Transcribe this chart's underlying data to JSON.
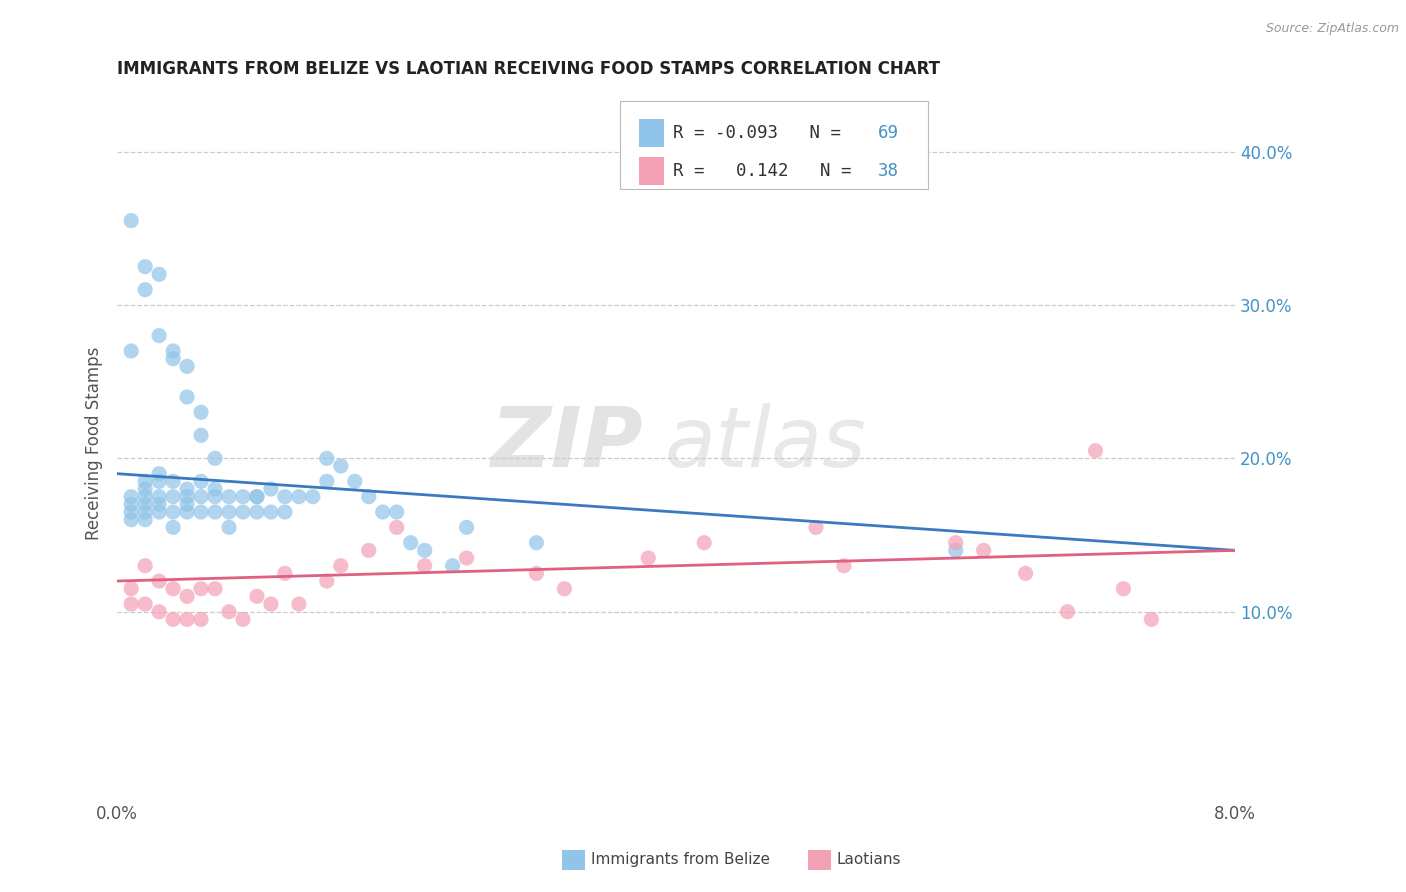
{
  "title": "IMMIGRANTS FROM BELIZE VS LAOTIAN RECEIVING FOOD STAMPS CORRELATION CHART",
  "source": "Source: ZipAtlas.com",
  "ylabel": "Receiving Food Stamps",
  "right_yticks": [
    "40.0%",
    "30.0%",
    "20.0%",
    "10.0%"
  ],
  "right_ytick_vals": [
    0.4,
    0.3,
    0.2,
    0.1
  ],
  "xlim": [
    0.0,
    0.08
  ],
  "ylim": [
    -0.02,
    0.44
  ],
  "belize_R": "-0.093",
  "belize_N": "69",
  "laotian_R": "0.142",
  "laotian_N": "38",
  "belize_color": "#90c4e8",
  "laotian_color": "#f4a0b5",
  "belize_line_color": "#3a7abf",
  "laotian_line_color": "#e06080",
  "legend_label_belize": "Immigrants from Belize",
  "legend_label_laotian": "Laotians",
  "watermark_zip": "ZIP",
  "watermark_atlas": "atlas",
  "belize_x": [
    0.001,
    0.001,
    0.001,
    0.001,
    0.002,
    0.002,
    0.002,
    0.002,
    0.002,
    0.002,
    0.003,
    0.003,
    0.003,
    0.003,
    0.003,
    0.004,
    0.004,
    0.004,
    0.004,
    0.005,
    0.005,
    0.005,
    0.005,
    0.006,
    0.006,
    0.006,
    0.007,
    0.007,
    0.007,
    0.008,
    0.008,
    0.008,
    0.009,
    0.009,
    0.01,
    0.01,
    0.011,
    0.011,
    0.012,
    0.012,
    0.013,
    0.014,
    0.015,
    0.016,
    0.017,
    0.018,
    0.019,
    0.021,
    0.022,
    0.024,
    0.001,
    0.001,
    0.002,
    0.002,
    0.003,
    0.003,
    0.004,
    0.004,
    0.005,
    0.005,
    0.006,
    0.006,
    0.007,
    0.01,
    0.015,
    0.02,
    0.025,
    0.03,
    0.06
  ],
  "belize_y": [
    0.175,
    0.17,
    0.165,
    0.16,
    0.185,
    0.18,
    0.175,
    0.17,
    0.165,
    0.16,
    0.19,
    0.185,
    0.175,
    0.17,
    0.165,
    0.185,
    0.175,
    0.165,
    0.155,
    0.18,
    0.175,
    0.17,
    0.165,
    0.185,
    0.175,
    0.165,
    0.18,
    0.175,
    0.165,
    0.175,
    0.165,
    0.155,
    0.175,
    0.165,
    0.175,
    0.165,
    0.18,
    0.165,
    0.175,
    0.165,
    0.175,
    0.175,
    0.2,
    0.195,
    0.185,
    0.175,
    0.165,
    0.145,
    0.14,
    0.13,
    0.355,
    0.27,
    0.325,
    0.31,
    0.32,
    0.28,
    0.27,
    0.265,
    0.26,
    0.24,
    0.23,
    0.215,
    0.2,
    0.175,
    0.185,
    0.165,
    0.155,
    0.145,
    0.14
  ],
  "laotian_x": [
    0.001,
    0.001,
    0.002,
    0.002,
    0.003,
    0.003,
    0.004,
    0.004,
    0.005,
    0.005,
    0.006,
    0.006,
    0.007,
    0.008,
    0.009,
    0.01,
    0.011,
    0.012,
    0.013,
    0.015,
    0.016,
    0.018,
    0.02,
    0.022,
    0.025,
    0.03,
    0.032,
    0.038,
    0.042,
    0.05,
    0.052,
    0.06,
    0.062,
    0.065,
    0.068,
    0.07,
    0.072,
    0.074
  ],
  "laotian_y": [
    0.115,
    0.105,
    0.13,
    0.105,
    0.12,
    0.1,
    0.115,
    0.095,
    0.11,
    0.095,
    0.115,
    0.095,
    0.115,
    0.1,
    0.095,
    0.11,
    0.105,
    0.125,
    0.105,
    0.12,
    0.13,
    0.14,
    0.155,
    0.13,
    0.135,
    0.125,
    0.115,
    0.135,
    0.145,
    0.155,
    0.13,
    0.145,
    0.14,
    0.125,
    0.1,
    0.205,
    0.115,
    0.095
  ]
}
